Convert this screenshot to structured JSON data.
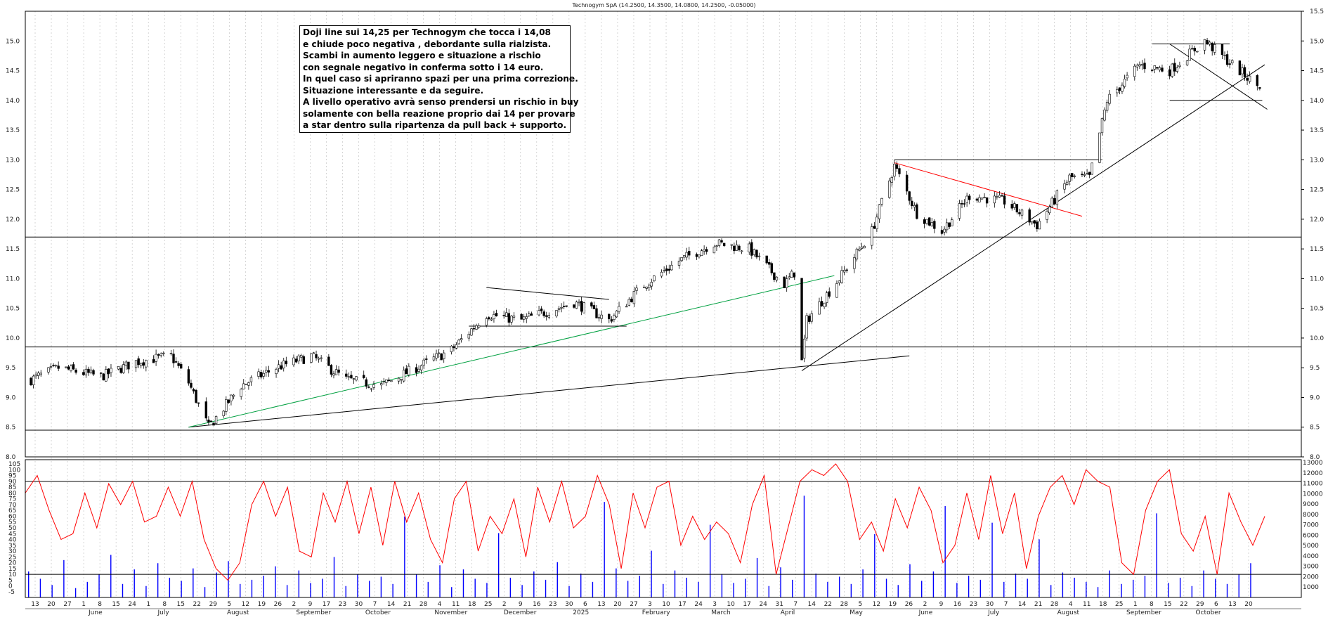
{
  "title": "Technogym SpA (14.2500, 14.3500, 14.0800, 14.2500, -0.05000)",
  "annotation": [
    "Doji line sui 14,25 per Technogym che tocca i 14,08",
    "e chiude poco negativa , debordante sulla rialzista.",
    "Scambi in aumento leggero e situazione a rischio",
    "con segnale negativo in conferma sotto i 14 euro.",
    "In quel caso si apriranno spazi per una prima correzione.",
    "Situazione interessante e da seguire.",
    "A livello operativo avrà senso prendersi un rischio in buy",
    "solamente con bella reazione proprio dai 14 per provare",
    "a star dentro sulla ripartenza da pull back + supporto."
  ],
  "colors": {
    "candle": "#000000",
    "oscillator": "#ff0000",
    "volume": "#0000ff",
    "trend_green": "#00a040",
    "trend_red": "#ff0000"
  },
  "chart_data": {
    "type": "line",
    "price": {
      "ylim": [
        8.0,
        15.5
      ],
      "y_ticks": [
        "8.0",
        "8.5",
        "9.0",
        "9.5",
        "10.0",
        "10.5",
        "11.0",
        "11.5",
        "12.0",
        "12.5",
        "13.0",
        "13.5",
        "14.0",
        "14.5",
        "15.0",
        "15.5"
      ],
      "x": [
        "2024-06-03",
        "2024-06-14",
        "2024-07-01",
        "2024-07-15",
        "2024-07-29",
        "2024-08-05",
        "2024-08-13",
        "2024-08-26",
        "2024-09-09",
        "2024-09-23",
        "2024-10-07",
        "2024-10-21",
        "2024-11-04",
        "2024-11-18",
        "2024-12-02",
        "2024-12-16",
        "2025-01-06",
        "2025-01-20",
        "2025-02-03",
        "2025-02-17",
        "2025-03-03",
        "2025-03-17",
        "2025-03-31",
        "2025-04-04",
        "2025-04-07",
        "2025-04-09",
        "2025-04-22",
        "2025-05-05",
        "2025-05-14",
        "2025-05-23",
        "2025-06-02",
        "2025-06-13",
        "2025-06-27",
        "2025-07-10",
        "2025-07-23",
        "2025-07-31",
        "2025-08-07",
        "2025-08-20",
        "2025-09-01",
        "2025-09-15",
        "2025-09-26",
        "2025-10-06"
      ],
      "close": [
        9.3,
        9.5,
        9.35,
        9.6,
        9.7,
        9.25,
        8.5,
        9.2,
        9.5,
        9.7,
        9.3,
        9.2,
        9.5,
        9.8,
        10.4,
        10.3,
        10.6,
        10.3,
        10.9,
        11.3,
        11.6,
        11.5,
        10.9,
        11.1,
        9.6,
        10.3,
        11.0,
        11.8,
        12.9,
        12.1,
        11.8,
        12.4,
        12.3,
        11.9,
        12.7,
        12.7,
        14.0,
        14.6,
        14.5,
        15.0,
        14.6,
        14.25
      ],
      "horizontal_levels": [
        8.45,
        9.85,
        11.7,
        13.0,
        14.0,
        14.95
      ],
      "last_candle": {
        "open": 14.25,
        "high": 14.35,
        "low": 14.08,
        "close": 14.25
      }
    },
    "oscillator": {
      "y_ticks": [
        "-5",
        "0",
        "5",
        "10",
        "15",
        "20",
        "25",
        "30",
        "35",
        "40",
        "45",
        "50",
        "55",
        "60",
        "65",
        "70",
        "75",
        "80",
        "85",
        "90",
        "95",
        "100",
        "105"
      ],
      "levels": [
        10,
        90
      ],
      "values": [
        80,
        95,
        65,
        40,
        45,
        80,
        50,
        88,
        70,
        90,
        55,
        60,
        85,
        60,
        90,
        40,
        15,
        5,
        20,
        70,
        90,
        60,
        85,
        30,
        25,
        80,
        55,
        90,
        45,
        85,
        35,
        90,
        55,
        80,
        40,
        20,
        75,
        90,
        30,
        60,
        45,
        75,
        25,
        85,
        55,
        90,
        50,
        60,
        95,
        70,
        15,
        80,
        50,
        85,
        90,
        35,
        60,
        40,
        55,
        45,
        20,
        70,
        95,
        10,
        50,
        90,
        100,
        95,
        105,
        90,
        40,
        55,
        30,
        75,
        50,
        85,
        65,
        20,
        35,
        80,
        40,
        95,
        45,
        80,
        15,
        60,
        85,
        95,
        70,
        100,
        90,
        85,
        20,
        10,
        65,
        90,
        100,
        45,
        30,
        60,
        10,
        80,
        55,
        35,
        60
      ]
    },
    "volume": {
      "y_ticks": [
        "1000",
        "2000",
        "3000",
        "4000",
        "5000",
        "6000",
        "7000",
        "8000",
        "9000",
        "10000",
        "11000",
        "12000",
        "13000"
      ],
      "values": [
        2500,
        1800,
        1200,
        3600,
        900,
        1500,
        2200,
        4100,
        1300,
        2700,
        1100,
        3300,
        1900,
        1600,
        2800,
        1000,
        2400,
        3500,
        1300,
        1700,
        2100,
        3000,
        1200,
        2600,
        1400,
        1800,
        3900,
        1100,
        2200,
        1600,
        2000,
        1300,
        7800,
        2200,
        1500,
        3100,
        1000,
        2700,
        1800,
        1400,
        6200,
        1900,
        1200,
        2500,
        1700,
        3400,
        1100,
        2300,
        1500,
        9200,
        2800,
        1600,
        2100,
        4500,
        1300,
        2600,
        1900,
        1500,
        7000,
        2200,
        1400,
        1800,
        3800,
        1100,
        2900,
        1700,
        9800,
        2300,
        1500,
        2000,
        1300,
        2700,
        6100,
        1800,
        1200,
        3200,
        1600,
        2500,
        8800,
        1400,
        2100,
        1700,
        7200,
        1500,
        2300,
        1800,
        5600,
        1200,
        2400,
        1900,
        1500,
        1000,
        2600,
        1300,
        1700,
        2100,
        8100,
        1400,
        1900,
        1100,
        2600,
        1800,
        1300,
        2200,
        3300
      ]
    },
    "x_day_labels": [
      "13",
      "20",
      "27",
      "1",
      "8",
      "15",
      "24",
      "1",
      "8",
      "15",
      "22",
      "29",
      "5",
      "12",
      "19",
      "26",
      "2",
      "9",
      "17",
      "23",
      "30",
      "7",
      "14",
      "21",
      "28",
      "4",
      "11",
      "18",
      "25",
      "2",
      "9",
      "16",
      "23",
      "30",
      "6",
      "13",
      "20",
      "27",
      "3",
      "10",
      "17",
      "24",
      "3",
      "10",
      "17",
      "24",
      "31",
      "7",
      "14",
      "22",
      "28",
      "5",
      "12",
      "19",
      "26",
      "2",
      "9",
      "16",
      "23",
      "30",
      "7",
      "14",
      "21",
      "28",
      "4",
      "11",
      "18",
      "25",
      "1",
      "8",
      "15",
      "22",
      "29",
      "6",
      "13",
      "20"
    ],
    "x_month_labels": [
      "June",
      "July",
      "August",
      "September",
      "October",
      "November",
      "December",
      "2025",
      "February",
      "March",
      "April",
      "May",
      "June",
      "July",
      "August",
      "September",
      "October"
    ]
  }
}
